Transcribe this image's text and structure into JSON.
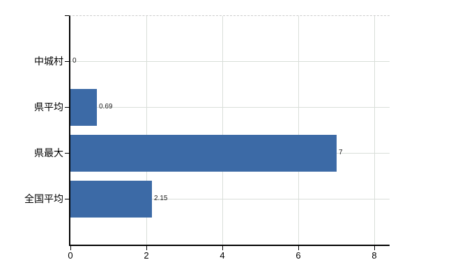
{
  "chart_data": {
    "type": "bar",
    "orientation": "horizontal",
    "title": "",
    "xlabel": "",
    "ylabel": "",
    "categories": [
      "中城村",
      "県平均",
      "県最大",
      "全国平均"
    ],
    "values": [
      0,
      0.69,
      7,
      2.15
    ],
    "value_labels": [
      "0",
      "0.69",
      "7",
      "2.15"
    ],
    "xticks": [
      "0",
      "2",
      "4",
      "6",
      "8"
    ],
    "xtick_values": [
      0,
      2,
      4,
      6,
      8
    ],
    "xlim": [
      0,
      8.4
    ],
    "grid": "on",
    "legend": "none"
  },
  "colors": {
    "bar": "#3C6AA6",
    "grid": "#d9ded9",
    "axis": "#000000",
    "text": "#000000",
    "value_text": "#222222",
    "background": "#ffffff"
  }
}
